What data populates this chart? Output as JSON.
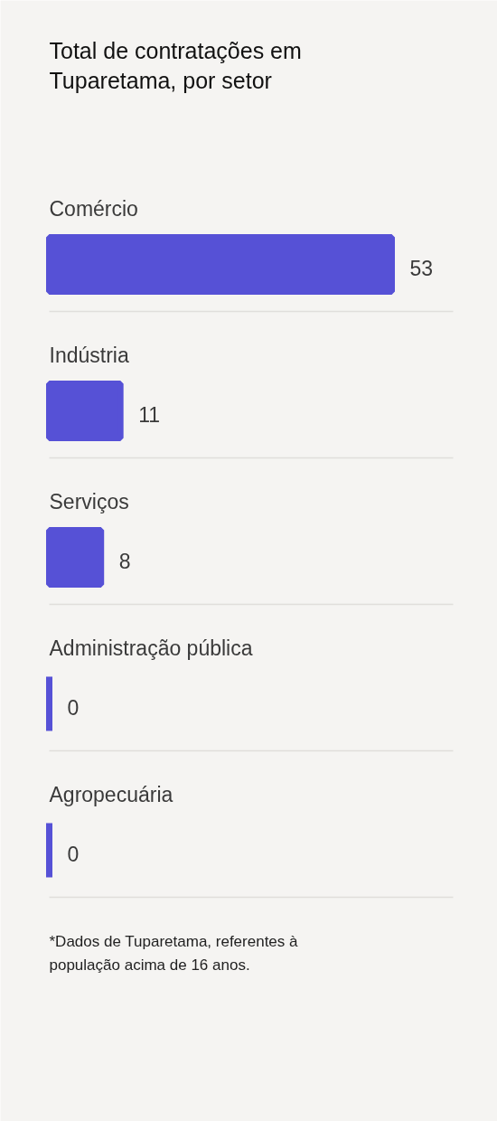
{
  "chart_data": {
    "type": "bar",
    "orientation": "horizontal",
    "title": "Total de contratações em Tuparetama, por setor",
    "categories": [
      "Comércio",
      "Indústria",
      "Serviços",
      "Administração pública",
      "Agropecuária"
    ],
    "values": [
      53,
      11,
      8,
      0,
      0
    ],
    "color": "#5651d6",
    "data_labels": true,
    "annotations": [
      "*Dados de Tuparetama, referentes à população acima de 16 anos."
    ]
  }
}
